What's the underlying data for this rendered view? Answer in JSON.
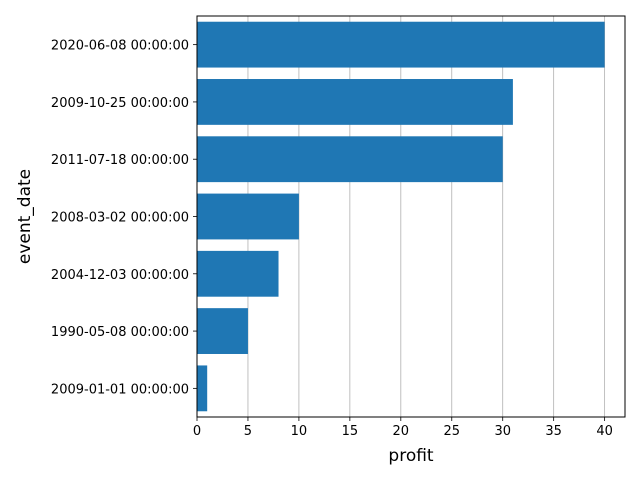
{
  "chart_data": {
    "type": "bar",
    "orientation": "horizontal",
    "title": "",
    "xlabel": "profit",
    "ylabel": "event_date",
    "categories": [
      "2020-06-08 00:00:00",
      "2009-10-25 00:00:00",
      "2011-07-18 00:00:00",
      "2008-03-02 00:00:00",
      "2004-12-03 00:00:00",
      "1990-05-08 00:00:00",
      "2009-01-01 00:00:00"
    ],
    "values": [
      40,
      31,
      30,
      10,
      8,
      5,
      1
    ],
    "xlim": [
      0,
      42
    ],
    "xticks": [
      0,
      5,
      10,
      15,
      20,
      25,
      30,
      35,
      40
    ],
    "grid": "x-major",
    "bar_color": "#1f77b4",
    "grid_color": "#b0b0b0"
  }
}
